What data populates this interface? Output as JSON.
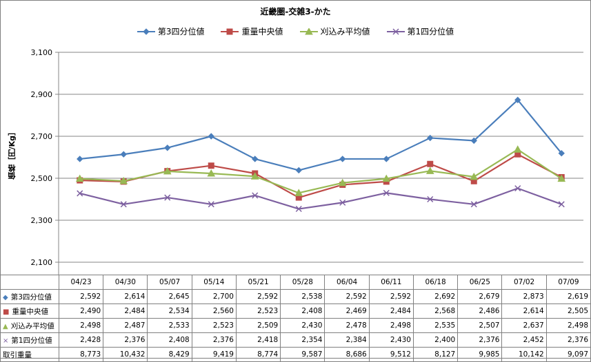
{
  "chart_data": {
    "type": "line",
    "title": "近畿圏-交雑3-かた",
    "ylabel": "価格［円/Kg］",
    "ylim": [
      2100,
      3100
    ],
    "yticks": [
      2100,
      2300,
      2500,
      2700,
      2900,
      3100
    ],
    "ytick_labels": [
      "2,100",
      "2,300",
      "2,500",
      "2,700",
      "2,900",
      "3,100"
    ],
    "grid": "horizontal",
    "legend_position": "top",
    "categories": [
      "04/23",
      "04/30",
      "05/07",
      "05/14",
      "05/21",
      "05/28",
      "06/04",
      "06/11",
      "06/18",
      "06/25",
      "07/02",
      "07/09"
    ],
    "series": [
      {
        "name": "第3四分位値",
        "color": "#4a7ebb",
        "marker": "diamond",
        "values": [
          2592,
          2614,
          2645,
          2700,
          2592,
          2538,
          2592,
          2592,
          2692,
          2679,
          2873,
          2619
        ],
        "labels": [
          "2,592",
          "2,614",
          "2,645",
          "2,700",
          "2,592",
          "2,538",
          "2,592",
          "2,592",
          "2,692",
          "2,679",
          "2,873",
          "2,619"
        ]
      },
      {
        "name": "重量中央値",
        "color": "#be4b48",
        "marker": "square",
        "values": [
          2490,
          2484,
          2534,
          2560,
          2523,
          2408,
          2469,
          2484,
          2568,
          2486,
          2614,
          2505
        ],
        "labels": [
          "2,490",
          "2,484",
          "2,534",
          "2,560",
          "2,523",
          "2,408",
          "2,469",
          "2,484",
          "2,568",
          "2,486",
          "2,614",
          "2,505"
        ]
      },
      {
        "name": "刈込み平均値",
        "color": "#98b954",
        "marker": "triangle",
        "values": [
          2498,
          2487,
          2533,
          2523,
          2509,
          2430,
          2478,
          2498,
          2535,
          2507,
          2637,
          2498
        ],
        "labels": [
          "2,498",
          "2,487",
          "2,533",
          "2,523",
          "2,509",
          "2,430",
          "2,478",
          "2,498",
          "2,535",
          "2,507",
          "2,637",
          "2,498"
        ]
      },
      {
        "name": "第1四分位値",
        "color": "#7d60a0",
        "marker": "x",
        "values": [
          2428,
          2376,
          2408,
          2376,
          2418,
          2354,
          2384,
          2430,
          2400,
          2376,
          2452,
          2376
        ],
        "labels": [
          "2,428",
          "2,376",
          "2,408",
          "2,376",
          "2,418",
          "2,354",
          "2,384",
          "2,430",
          "2,400",
          "2,376",
          "2,452",
          "2,376"
        ]
      }
    ],
    "extra_row": {
      "name": "取引重量",
      "values": [
        8773,
        10432,
        8429,
        9419,
        8774,
        9587,
        8686,
        9512,
        8127,
        9985,
        10142,
        9097
      ],
      "labels": [
        "8,773",
        "10,432",
        "8,429",
        "9,419",
        "8,774",
        "9,587",
        "8,686",
        "9,512",
        "8,127",
        "9,985",
        "10,142",
        "9,097"
      ]
    }
  }
}
